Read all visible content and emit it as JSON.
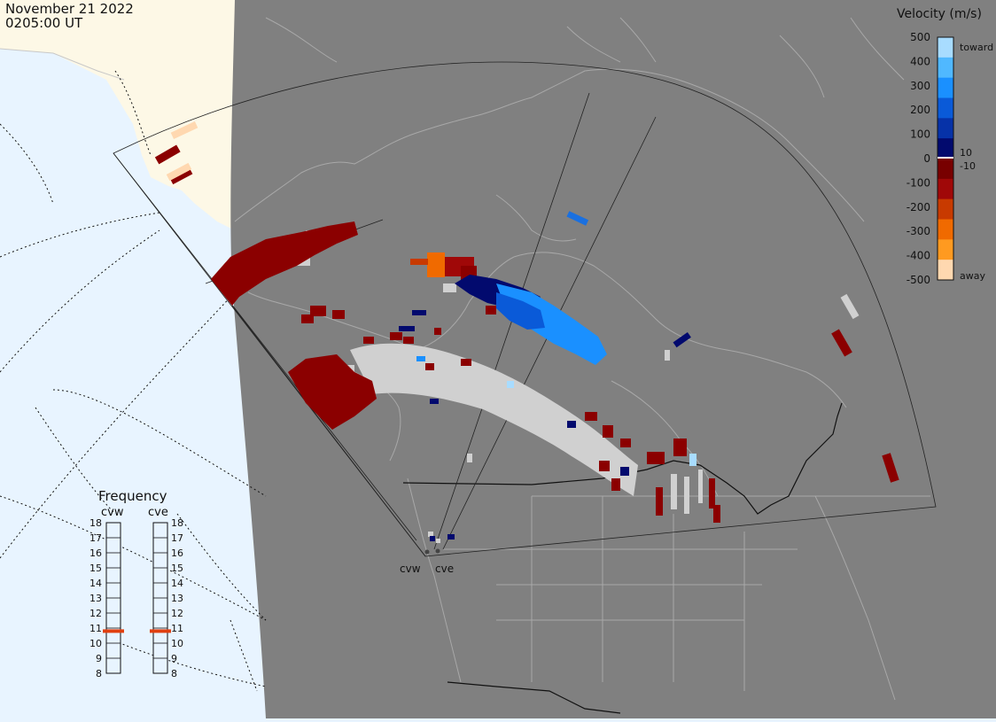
{
  "header": {
    "date": "November 21 2022",
    "time": "0205:00 UT"
  },
  "velocity_scale": {
    "title": "Velocity (m/s)",
    "tick_labels": [
      "500",
      "400",
      "300",
      "200",
      "100",
      "0",
      "-100",
      "-200",
      "-300",
      "-400",
      "-500"
    ],
    "toward_label": "toward",
    "away_label": "away",
    "threshold_pos_label": "10",
    "threshold_neg_label": "-10",
    "colors": [
      "#a8dcff",
      "#50b8ff",
      "#1a90ff",
      "#0a5ad8",
      "#0632a8",
      "#020a6e",
      "#780000",
      "#a00808",
      "#c83a00",
      "#f06a00",
      "#ff9a20",
      "#ffd8b0"
    ]
  },
  "frequency_panel": {
    "title": "Frequency",
    "unit_note": "",
    "radars": [
      {
        "id": "cvw",
        "label": "cvw",
        "frequency_mhz": 10.8
      },
      {
        "id": "cve",
        "label": "cve",
        "frequency_mhz": 10.8
      }
    ],
    "ticks": [
      "18",
      "17",
      "16",
      "15",
      "14",
      "13",
      "12",
      "11",
      "10",
      "9",
      "8"
    ],
    "marker_color": "#e04010"
  },
  "map": {
    "site_labels": [
      "cvw",
      "cve"
    ],
    "colors": {
      "ocean": "#e8f4ff",
      "land_outside_night": "#fdf8e6",
      "night_shade": "#808080",
      "coast": "#b0b0b0",
      "ground_scatter": "#d0d0d0"
    }
  }
}
